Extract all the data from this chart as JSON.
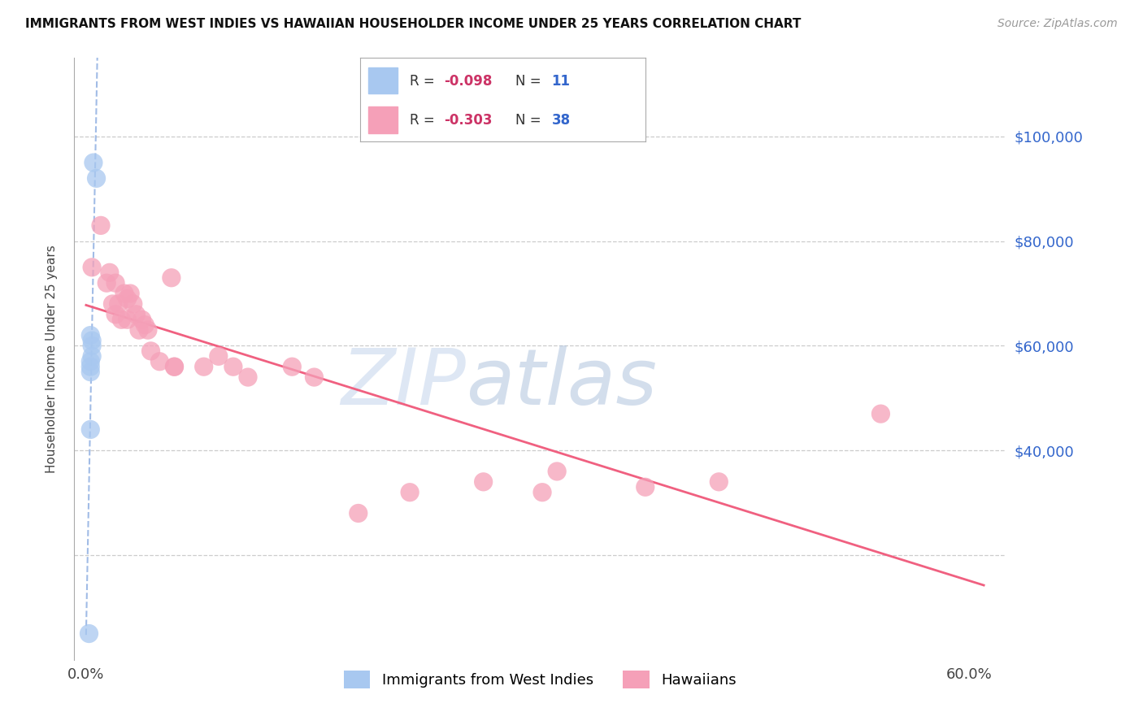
{
  "title": "IMMIGRANTS FROM WEST INDIES VS HAWAIIAN HOUSEHOLDER INCOME UNDER 25 YEARS CORRELATION CHART",
  "source": "Source: ZipAtlas.com",
  "ylabel": "Householder Income Under 25 years",
  "legend_label1": "Immigrants from West Indies",
  "legend_label2": "Hawaiians",
  "R1": -0.098,
  "N1": 11,
  "R2": -0.303,
  "N2": 38,
  "color1": "#a8c8f0",
  "color2": "#f5a0b8",
  "line_color1": "#8aabe0",
  "line_color2": "#f06080",
  "xlim_min": -0.008,
  "xlim_max": 0.625,
  "ylim_min": 0,
  "ylim_max": 115000,
  "grid_color": "#cccccc",
  "background_color": "#ffffff",
  "watermark_zip": "ZIP",
  "watermark_atlas": "atlas",
  "west_indies_x": [
    0.005,
    0.007,
    0.003,
    0.004,
    0.004,
    0.004,
    0.003,
    0.003,
    0.003,
    0.003,
    0.002
  ],
  "west_indies_y": [
    95000,
    92000,
    62000,
    61000,
    60000,
    58000,
    57000,
    56000,
    55000,
    44000,
    5000
  ],
  "hawaiians_x": [
    0.004,
    0.01,
    0.014,
    0.016,
    0.018,
    0.02,
    0.02,
    0.022,
    0.024,
    0.026,
    0.028,
    0.028,
    0.03,
    0.032,
    0.034,
    0.036,
    0.038,
    0.04,
    0.042,
    0.044,
    0.05,
    0.058,
    0.06,
    0.06,
    0.08,
    0.09,
    0.1,
    0.11,
    0.14,
    0.155,
    0.185,
    0.22,
    0.27,
    0.31,
    0.32,
    0.38,
    0.43,
    0.54
  ],
  "hawaiians_y": [
    75000,
    83000,
    72000,
    74000,
    68000,
    72000,
    66000,
    68000,
    65000,
    70000,
    69000,
    65000,
    70000,
    68000,
    66000,
    63000,
    65000,
    64000,
    63000,
    59000,
    57000,
    73000,
    56000,
    56000,
    56000,
    58000,
    56000,
    54000,
    56000,
    54000,
    28000,
    32000,
    34000,
    32000,
    36000,
    33000,
    34000,
    47000
  ]
}
